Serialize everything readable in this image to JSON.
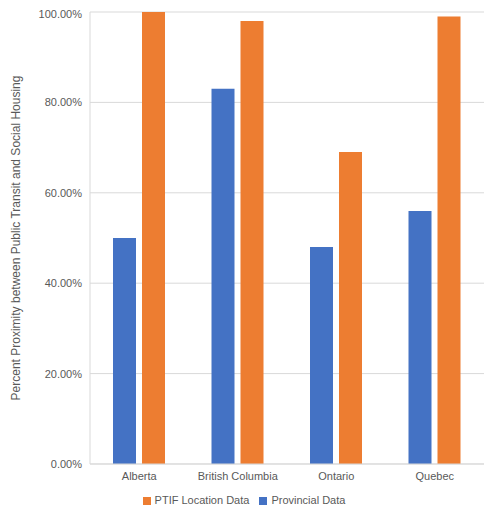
{
  "chart_data": {
    "type": "bar",
    "y_label": "Percent Proximity between Public Transit and Social Housing",
    "categories": [
      "Alberta",
      "British Columbia",
      "Ontario",
      "Quebec"
    ],
    "series": [
      {
        "name": "Provincial Data",
        "color": "#4472c4",
        "values": [
          50,
          83,
          48,
          56
        ]
      },
      {
        "name": "PTIF Location Data",
        "color": "#ed7d31",
        "values": [
          100,
          98,
          69,
          99
        ]
      }
    ],
    "ylim": [
      0,
      100
    ],
    "yticks": [
      {
        "value": 0,
        "label": "0.00%"
      },
      {
        "value": 20,
        "label": "20.00%"
      },
      {
        "value": 40,
        "label": "40.00%"
      },
      {
        "value": 60,
        "label": "60.00%"
      },
      {
        "value": 80,
        "label": "80.00%"
      },
      {
        "value": 100,
        "label": "100.00%"
      }
    ],
    "grid": true,
    "legend": "bottom"
  }
}
